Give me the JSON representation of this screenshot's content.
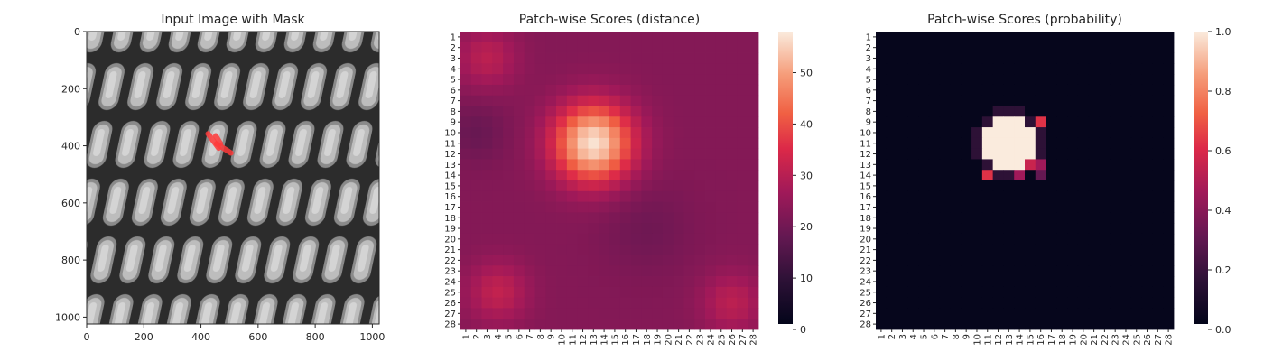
{
  "chart_data": [
    {
      "type": "image",
      "title": "Input Image with Mask",
      "xlim": [
        0,
        1024
      ],
      "ylim": [
        1024,
        0
      ],
      "xticks": [
        0,
        200,
        400,
        600,
        800,
        1000
      ],
      "yticks": [
        0,
        200,
        400,
        600,
        800,
        1000
      ],
      "grid": false,
      "mask_color": "#ff3b3b",
      "mask_segments": [
        {
          "x1": 425,
          "y1": 358,
          "x2": 462,
          "y2": 408
        },
        {
          "x1": 452,
          "y1": 365,
          "x2": 468,
          "y2": 392
        },
        {
          "x1": 455,
          "y1": 393,
          "x2": 505,
          "y2": 425
        }
      ]
    },
    {
      "type": "heatmap",
      "title": "Patch-wise Scores (distance)",
      "rows": 28,
      "cols": 28,
      "tick_labels": [
        "1",
        "2",
        "3",
        "4",
        "5",
        "6",
        "7",
        "8",
        "9",
        "10",
        "11",
        "12",
        "13",
        "14",
        "15",
        "16",
        "17",
        "18",
        "19",
        "20",
        "21",
        "22",
        "23",
        "24",
        "25",
        "26",
        "27",
        "28"
      ],
      "colorbar": {
        "min": 0,
        "max": 58,
        "ticks": [
          0,
          10,
          20,
          30,
          40,
          50
        ]
      },
      "colormap": "rocket",
      "background_level": 22,
      "hotspot": {
        "center_row": 11,
        "center_col": 13,
        "peak": 57,
        "radius": 2.6
      },
      "regional_variation": [
        {
          "row": 3,
          "col": 3,
          "value": 30,
          "spread": 2
        },
        {
          "row": 25,
          "col": 4,
          "value": 31,
          "spread": 2
        },
        {
          "row": 26,
          "col": 26,
          "value": 30,
          "spread": 2
        },
        {
          "row": 10,
          "col": 2,
          "value": 18,
          "spread": 2
        },
        {
          "row": 19,
          "col": 18,
          "value": 19,
          "spread": 3
        }
      ],
      "grid": false
    },
    {
      "type": "heatmap",
      "title": "Patch-wise Scores (probability)",
      "rows": 28,
      "cols": 28,
      "tick_labels": [
        "1",
        "2",
        "3",
        "4",
        "5",
        "6",
        "7",
        "8",
        "9",
        "10",
        "11",
        "12",
        "13",
        "14",
        "15",
        "16",
        "17",
        "18",
        "19",
        "20",
        "21",
        "22",
        "23",
        "24",
        "25",
        "26",
        "27",
        "28"
      ],
      "colorbar": {
        "min": 0,
        "max": 1,
        "ticks": [
          "0.0",
          "0.2",
          "0.4",
          "0.6",
          "0.8",
          "1.0"
        ]
      },
      "colormap": "rocket",
      "background_level": 0.01,
      "hotspot": {
        "center_row": 11,
        "center_col": 13,
        "peak": 1.0,
        "radius": 2.6
      },
      "hot_cells": [
        {
          "row": 9,
          "col": 16,
          "value": 0.62
        },
        {
          "row": 13,
          "col": 15,
          "value": 0.55
        },
        {
          "row": 13,
          "col": 16,
          "value": 0.45
        },
        {
          "row": 14,
          "col": 11,
          "value": 0.62
        },
        {
          "row": 14,
          "col": 14,
          "value": 0.45
        },
        {
          "row": 14,
          "col": 16,
          "value": 0.3
        }
      ],
      "grid": false
    }
  ]
}
